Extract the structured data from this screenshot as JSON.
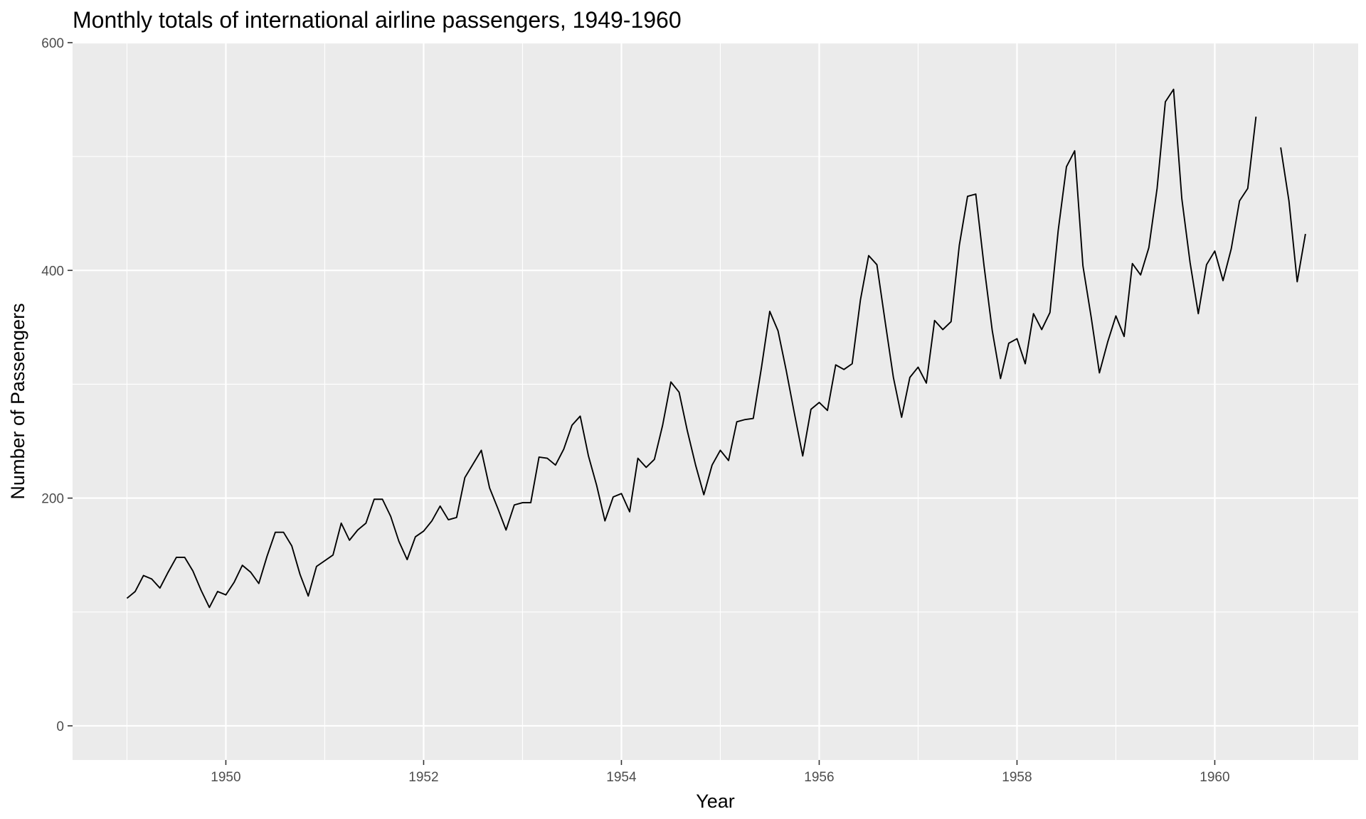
{
  "chart_data": {
    "type": "line",
    "title": "Monthly totals of international airline passengers, 1949-1960",
    "xlabel": "Year",
    "ylabel": "Number of Passengers",
    "xlim": [
      1948.45,
      1961.45
    ],
    "ylim": [
      -30,
      600
    ],
    "x_ticks": [
      1950,
      1952,
      1954,
      1956,
      1958,
      1960
    ],
    "x_tick_labels": [
      "1950",
      "1952",
      "1954",
      "1956",
      "1958",
      "1960"
    ],
    "y_ticks": [
      0,
      200,
      400,
      600
    ],
    "y_tick_labels": [
      "0",
      "200",
      "400",
      "600"
    ],
    "grid": true,
    "legend": "none",
    "colors": {
      "panel": "#ebebeb",
      "grid": "#ffffff",
      "line": "#000000",
      "tick_text": "#4d4d4d"
    },
    "series": [
      {
        "start": "1949-01",
        "frequency": "monthly",
        "values": [
          112,
          118,
          132,
          129,
          121,
          135,
          148,
          148,
          136,
          119,
          104,
          118,
          115,
          126,
          141,
          135,
          125,
          149,
          170,
          170,
          158,
          133,
          114,
          140,
          145,
          150,
          178,
          163,
          172,
          178,
          199,
          199,
          184,
          162,
          146,
          166,
          171,
          180,
          193,
          181,
          183,
          218,
          230,
          242,
          209,
          191,
          172,
          194,
          196,
          196,
          236,
          235,
          229,
          243,
          264,
          272,
          237,
          211,
          180,
          201,
          204,
          188,
          235,
          227,
          234,
          264,
          302,
          293,
          259,
          229,
          203,
          229,
          242,
          233,
          267,
          269,
          270,
          315,
          364,
          347,
          312,
          274,
          237,
          278,
          284,
          277,
          317,
          313,
          318,
          374,
          413,
          405,
          355,
          306,
          271,
          306,
          315,
          301,
          356,
          348,
          355,
          422,
          465,
          467,
          404,
          347,
          305,
          336,
          340,
          318,
          362,
          348,
          363,
          435,
          491,
          505,
          404,
          359,
          310,
          337,
          360,
          342,
          406,
          396,
          420,
          472,
          548,
          559,
          463,
          407,
          362,
          405,
          417,
          391,
          419,
          461,
          472,
          535,
          null,
          null,
          508,
          461,
          390,
          432
        ]
      }
    ]
  }
}
